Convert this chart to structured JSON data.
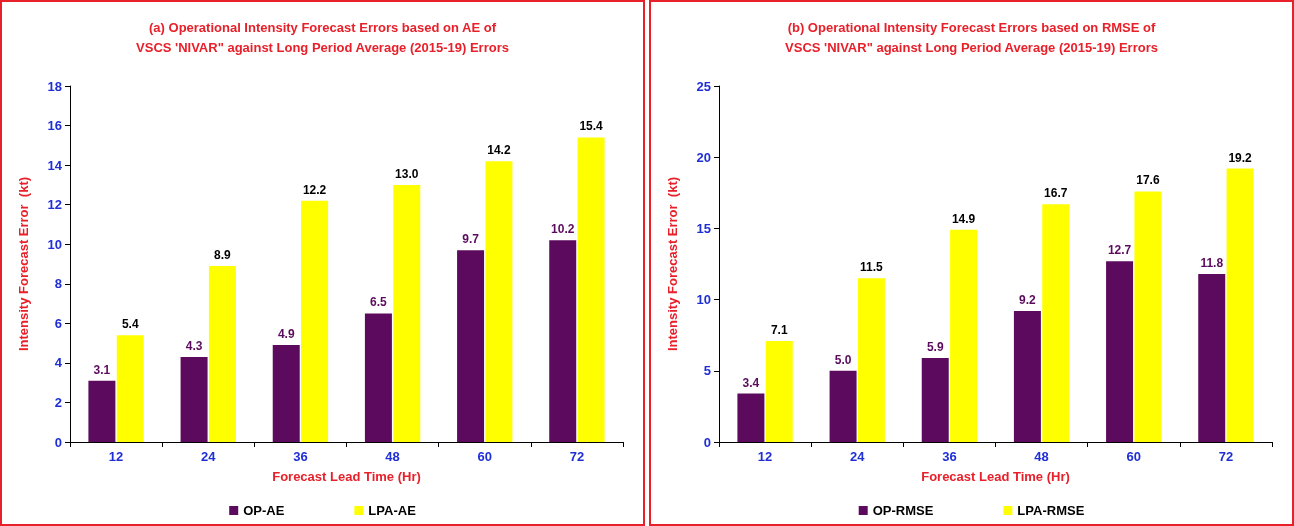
{
  "chart_data": [
    {
      "type": "bar",
      "title": "(a) Operational Intensity Forecast Errors based on AE of\nVSCS 'NIVAR\" against Long Period Average (2015-19) Errors",
      "xlabel": "Forecast Lead Time (Hr)",
      "ylabel": "Intensity Forecast Error  (kt)",
      "categories": [
        "12",
        "24",
        "36",
        "48",
        "60",
        "72"
      ],
      "ylim": [
        0,
        18
      ],
      "yticks": [
        0,
        2,
        4,
        6,
        8,
        10,
        12,
        14,
        16,
        18
      ],
      "legend": "bottom",
      "grid": false,
      "series": [
        {
          "name": "OP-AE",
          "color": "#5c0a5e",
          "values": [
            3.1,
            4.3,
            4.9,
            6.5,
            9.7,
            10.2
          ],
          "value_labels": [
            "3.1",
            "4.3",
            "4.9",
            "6.5",
            "9.7",
            "10.2"
          ]
        },
        {
          "name": "LPA-AE",
          "color": "#ffff00",
          "values": [
            5.4,
            8.9,
            12.2,
            13.0,
            14.2,
            15.4
          ],
          "value_labels": [
            "5.4",
            "8.9",
            "12.2",
            "13.0",
            "14.2",
            "15.4"
          ]
        }
      ]
    },
    {
      "type": "bar",
      "title": "(b) Operational Intensity Forecast Errors based on RMSE of\nVSCS 'NIVAR\" against Long Period Average (2015-19) Errors",
      "xlabel": "Forecast Lead Time (Hr)",
      "ylabel": "Intensity Forecast Error  (kt)",
      "categories": [
        "12",
        "24",
        "36",
        "48",
        "60",
        "72"
      ],
      "ylim": [
        0,
        25
      ],
      "yticks": [
        0,
        5,
        10,
        15,
        20,
        25
      ],
      "legend": "bottom",
      "grid": false,
      "series": [
        {
          "name": "OP-RMSE",
          "color": "#5c0a5e",
          "values": [
            3.4,
            5.0,
            5.9,
            9.2,
            12.7,
            11.8
          ],
          "value_labels": [
            "3.4",
            "5.0",
            "5.9",
            "9.2",
            "12.7",
            "11.8"
          ]
        },
        {
          "name": "LPA-RMSE",
          "color": "#ffff00",
          "values": [
            7.1,
            11.5,
            14.9,
            16.7,
            17.6,
            19.2
          ],
          "value_labels": [
            "7.1",
            "11.5",
            "14.9",
            "16.7",
            "17.6",
            "19.2"
          ]
        }
      ]
    }
  ]
}
